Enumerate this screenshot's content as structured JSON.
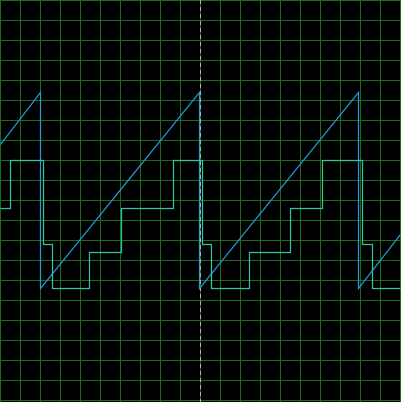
{
  "chart_data": {
    "type": "line",
    "title": "",
    "xlabel": "",
    "ylabel": "",
    "xlim": [
      0,
      20
    ],
    "ylim": [
      -10,
      10
    ],
    "grid": true,
    "colors": {
      "background": "#000000",
      "grid": "#1f6a1f",
      "center_marker": "#b4b4b4"
    },
    "center_marker_x": 10,
    "series": [
      {
        "color": "#1e9fd8",
        "x": [
          0,
          2.0,
          2.0,
          9.95,
          9.95,
          17.9,
          17.9,
          20
        ],
        "y": [
          2.8,
          5.4,
          -4.4,
          5.4,
          -4.4,
          5.4,
          -4.4,
          -1.7
        ]
      },
      {
        "color": "#2fc89b",
        "x": [
          0,
          0.5,
          0.5,
          2.15,
          2.15,
          2.6,
          2.6,
          4.45,
          4.45,
          6.05,
          6.05,
          8.65,
          8.65,
          10.1,
          10.1,
          10.55,
          10.55,
          12.45,
          12.45,
          14.5,
          14.5,
          16.1,
          16.1,
          18.1,
          18.1,
          18.6,
          18.6,
          20
        ],
        "y": [
          -0.4,
          -0.4,
          2.0,
          2.0,
          -2.2,
          -2.2,
          -4.4,
          -4.4,
          -2.6,
          -2.6,
          -0.4,
          -0.4,
          2.0,
          2.0,
          -2.2,
          -2.2,
          -4.4,
          -4.4,
          -2.6,
          -2.6,
          -0.4,
          -0.4,
          2.0,
          2.0,
          -2.2,
          -2.2,
          -4.4,
          -4.4
        ]
      }
    ]
  }
}
